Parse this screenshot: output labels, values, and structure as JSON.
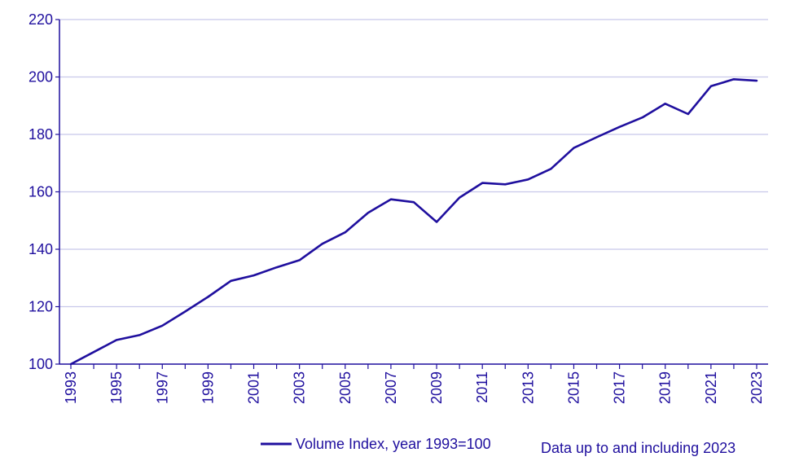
{
  "colors": {
    "series": "#1f0f9e",
    "grid": "#c8c8ea",
    "axis": "#1f0f9e",
    "text": "#1f0f9e"
  },
  "note": "Data up to and including 2023",
  "chart_data": {
    "type": "line",
    "title": "",
    "xlabel": "",
    "ylabel": "",
    "ylim": [
      100,
      220
    ],
    "yticks": [
      100,
      120,
      140,
      160,
      180,
      200,
      220
    ],
    "xlim": [
      1993,
      2023
    ],
    "xticks": [
      1993,
      1995,
      1997,
      1999,
      2001,
      2003,
      2005,
      2007,
      2009,
      2011,
      2013,
      2015,
      2017,
      2019,
      2021,
      2023
    ],
    "grid": true,
    "legend_position": "bottom",
    "x": [
      1993,
      1994,
      1995,
      1996,
      1997,
      1998,
      1999,
      2000,
      2001,
      2002,
      2003,
      2004,
      2005,
      2006,
      2007,
      2008,
      2009,
      2010,
      2011,
      2012,
      2013,
      2014,
      2015,
      2016,
      2017,
      2018,
      2019,
      2020,
      2021,
      2022,
      2023
    ],
    "series": [
      {
        "name": "Volume Index, year 1993=100",
        "values": [
          100,
          104.2,
          108.4,
          110.1,
          113.4,
          118.3,
          123.4,
          129.0,
          130.9,
          133.7,
          136.2,
          141.9,
          145.9,
          152.7,
          157.4,
          156.4,
          149.5,
          158.0,
          163.1,
          162.6,
          164.3,
          168.0,
          175.3,
          179.0,
          182.6,
          185.9,
          190.7,
          187.1,
          196.8,
          199.2,
          198.7
        ]
      }
    ]
  }
}
